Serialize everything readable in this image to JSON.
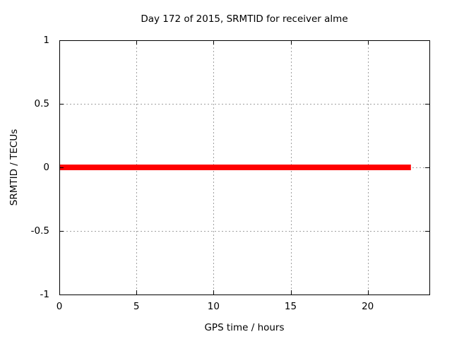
{
  "chart_data": {
    "type": "line",
    "title": "Day 172 of 2015, SRMTID for receiver alme",
    "xlabel": "GPS time / hours",
    "ylabel": "SRMTID / TECUs",
    "xlim": [
      0,
      24
    ],
    "ylim": [
      -1,
      1
    ],
    "xticks": [
      {
        "value": 0,
        "label": "0"
      },
      {
        "value": 5,
        "label": "5"
      },
      {
        "value": 10,
        "label": "10"
      },
      {
        "value": 15,
        "label": "15"
      },
      {
        "value": 20,
        "label": "20"
      }
    ],
    "yticks": [
      {
        "value": -1,
        "label": "-1"
      },
      {
        "value": -0.5,
        "label": "-0.5"
      },
      {
        "value": 0,
        "label": "0"
      },
      {
        "value": 0.5,
        "label": "0.5"
      },
      {
        "value": 1,
        "label": "1"
      }
    ],
    "grid": true,
    "legend": false,
    "series": [
      {
        "name": "SRMTID",
        "color": "#ff0000",
        "line_width": 8,
        "x": [
          0,
          22.8
        ],
        "y": [
          0,
          0
        ]
      }
    ],
    "colors": {
      "border": "#000000",
      "grid": "#a0a0a0",
      "tick": "#000000",
      "background": "#ffffff",
      "text": "#000000"
    }
  }
}
